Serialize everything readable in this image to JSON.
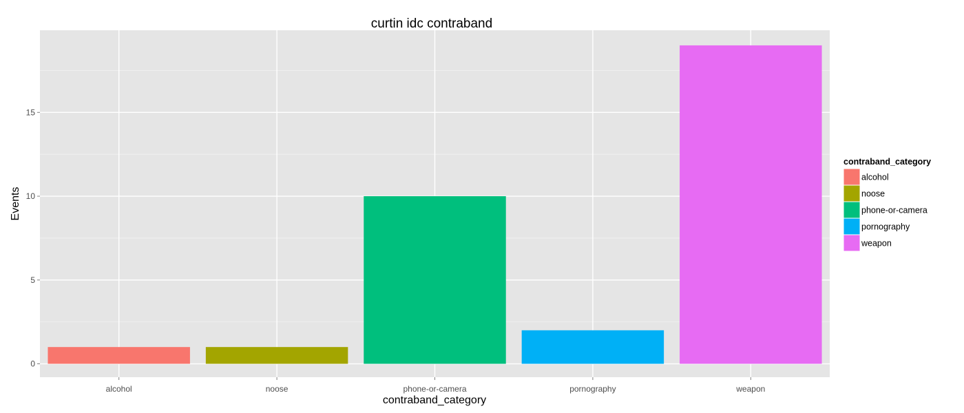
{
  "chart_data": {
    "type": "bar",
    "title": "curtin idc contraband",
    "xlabel": "contraband_category",
    "ylabel": "Events",
    "categories": [
      "alcohol",
      "noose",
      "phone-or-camera",
      "pornography",
      "weapon"
    ],
    "values": [
      1,
      1,
      10,
      2,
      19
    ],
    "colors": [
      "#F8766D",
      "#A3A500",
      "#00BF7D",
      "#00B0F6",
      "#E76BF3"
    ],
    "ylim": [
      -0.8,
      19.9
    ],
    "yticks": [
      0,
      5,
      10,
      15
    ],
    "grid": true,
    "background": "#E5E5E5",
    "legend": {
      "title": "contraband_category",
      "position": "right"
    }
  }
}
